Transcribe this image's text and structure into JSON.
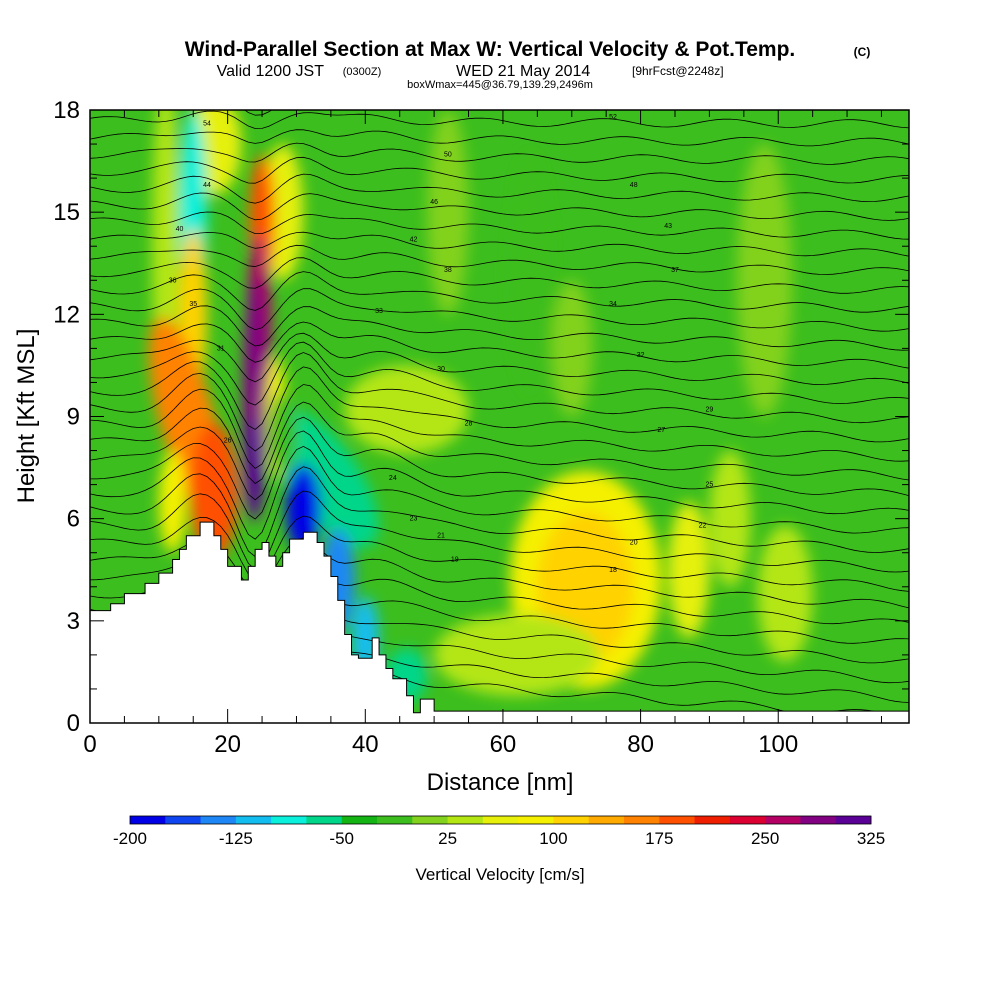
{
  "title": {
    "main": "Wind-Parallel Section at Max W: Vertical Velocity & Pot.Temp.",
    "main_mark": "(C)",
    "valid_prefix": "Valid 1200 JST",
    "valid_zulu": "(0300Z)",
    "valid_date": "WED 21 May 2014",
    "forecast": "[9hrFcst@2248z]",
    "box_info": "boxWmax=445@36.79,139.29,2496m"
  },
  "chart_data": {
    "type": "heatmap",
    "xlabel": "Distance [nm]",
    "ylabel": "Height [Kft MSL]",
    "xlim": [
      0,
      119
    ],
    "ylim": [
      0,
      18
    ],
    "x_ticks": [
      "0",
      "20",
      "40",
      "60",
      "80",
      "100"
    ],
    "y_ticks": [
      "0",
      "3",
      "6",
      "9",
      "12",
      "15",
      "18"
    ],
    "colorbar": {
      "label": "Vertical Velocity [cm/s]",
      "min": -200,
      "step": 25,
      "tick_labels": [
        "-200",
        "-125",
        "-50",
        "25",
        "100",
        "175",
        "250",
        "325"
      ],
      "colors": [
        "#0000e6",
        "#0f45f0",
        "#1e87f5",
        "#14bdf0",
        "#0af0dc",
        "#00d68a",
        "#14b414",
        "#3cbe1e",
        "#82d21e",
        "#b4e614",
        "#e6f00a",
        "#f5f000",
        "#ffd200",
        "#ffaa00",
        "#ff8200",
        "#ff5000",
        "#f01e00",
        "#dc0032",
        "#b40064",
        "#820082",
        "#5a0096"
      ]
    },
    "terrain_profile_kft": [
      [
        0,
        3.3
      ],
      [
        1,
        3.3
      ],
      [
        3,
        3.3
      ],
      [
        3,
        3.5
      ],
      [
        5,
        3.5
      ],
      [
        5,
        3.8
      ],
      [
        8,
        3.8
      ],
      [
        8,
        4.1
      ],
      [
        10,
        4.1
      ],
      [
        10,
        4.4
      ],
      [
        12,
        4.4
      ],
      [
        12,
        4.8
      ],
      [
        13,
        4.8
      ],
      [
        13,
        5.1
      ],
      [
        14,
        5.1
      ],
      [
        14,
        5.5
      ],
      [
        16,
        5.5
      ],
      [
        16,
        5.9
      ],
      [
        18,
        5.9
      ],
      [
        18,
        5.5
      ],
      [
        19,
        5.5
      ],
      [
        19,
        5.1
      ],
      [
        20,
        5.1
      ],
      [
        20,
        4.6
      ],
      [
        22,
        4.6
      ],
      [
        22,
        4.2
      ],
      [
        23,
        4.2
      ],
      [
        23,
        4.6
      ],
      [
        24,
        4.6
      ],
      [
        24,
        5.1
      ],
      [
        25,
        5.1
      ],
      [
        25,
        5.3
      ],
      [
        26,
        5.3
      ],
      [
        26,
        4.9
      ],
      [
        27,
        4.9
      ],
      [
        27,
        4.6
      ],
      [
        28,
        4.6
      ],
      [
        28,
        5.0
      ],
      [
        29,
        5.0
      ],
      [
        29,
        5.4
      ],
      [
        31,
        5.4
      ],
      [
        31,
        5.6
      ],
      [
        33,
        5.6
      ],
      [
        33,
        5.3
      ],
      [
        34,
        5.3
      ],
      [
        34,
        4.9
      ],
      [
        35,
        4.9
      ],
      [
        35,
        4.3
      ],
      [
        36,
        4.3
      ],
      [
        36,
        3.6
      ],
      [
        37,
        3.6
      ],
      [
        37,
        2.6
      ],
      [
        38,
        2.6
      ],
      [
        38,
        2.0
      ],
      [
        39,
        2.0
      ],
      [
        39,
        1.9
      ],
      [
        41,
        1.9
      ],
      [
        41,
        2.5
      ],
      [
        42,
        2.5
      ],
      [
        42,
        2.0
      ],
      [
        43,
        2.0
      ],
      [
        43,
        1.6
      ],
      [
        44,
        1.6
      ],
      [
        44,
        1.3
      ],
      [
        46,
        1.3
      ],
      [
        46,
        0.8
      ],
      [
        47,
        0.8
      ],
      [
        47,
        0.3
      ],
      [
        48,
        0.3
      ],
      [
        48,
        0.7
      ],
      [
        50,
        0.7
      ],
      [
        50,
        0.35
      ],
      [
        119,
        0.35
      ]
    ],
    "theta_label_values": [
      "54",
      "52",
      "50",
      "48",
      "46",
      "44",
      "43",
      "42",
      "40",
      "38",
      "37",
      "36",
      "35",
      "34",
      "33",
      "32",
      "31",
      "30",
      "29",
      "28",
      "27",
      "26",
      "25",
      "24",
      "23",
      "22",
      "21",
      "20",
      "19",
      "18"
    ]
  },
  "credit": "(C)"
}
